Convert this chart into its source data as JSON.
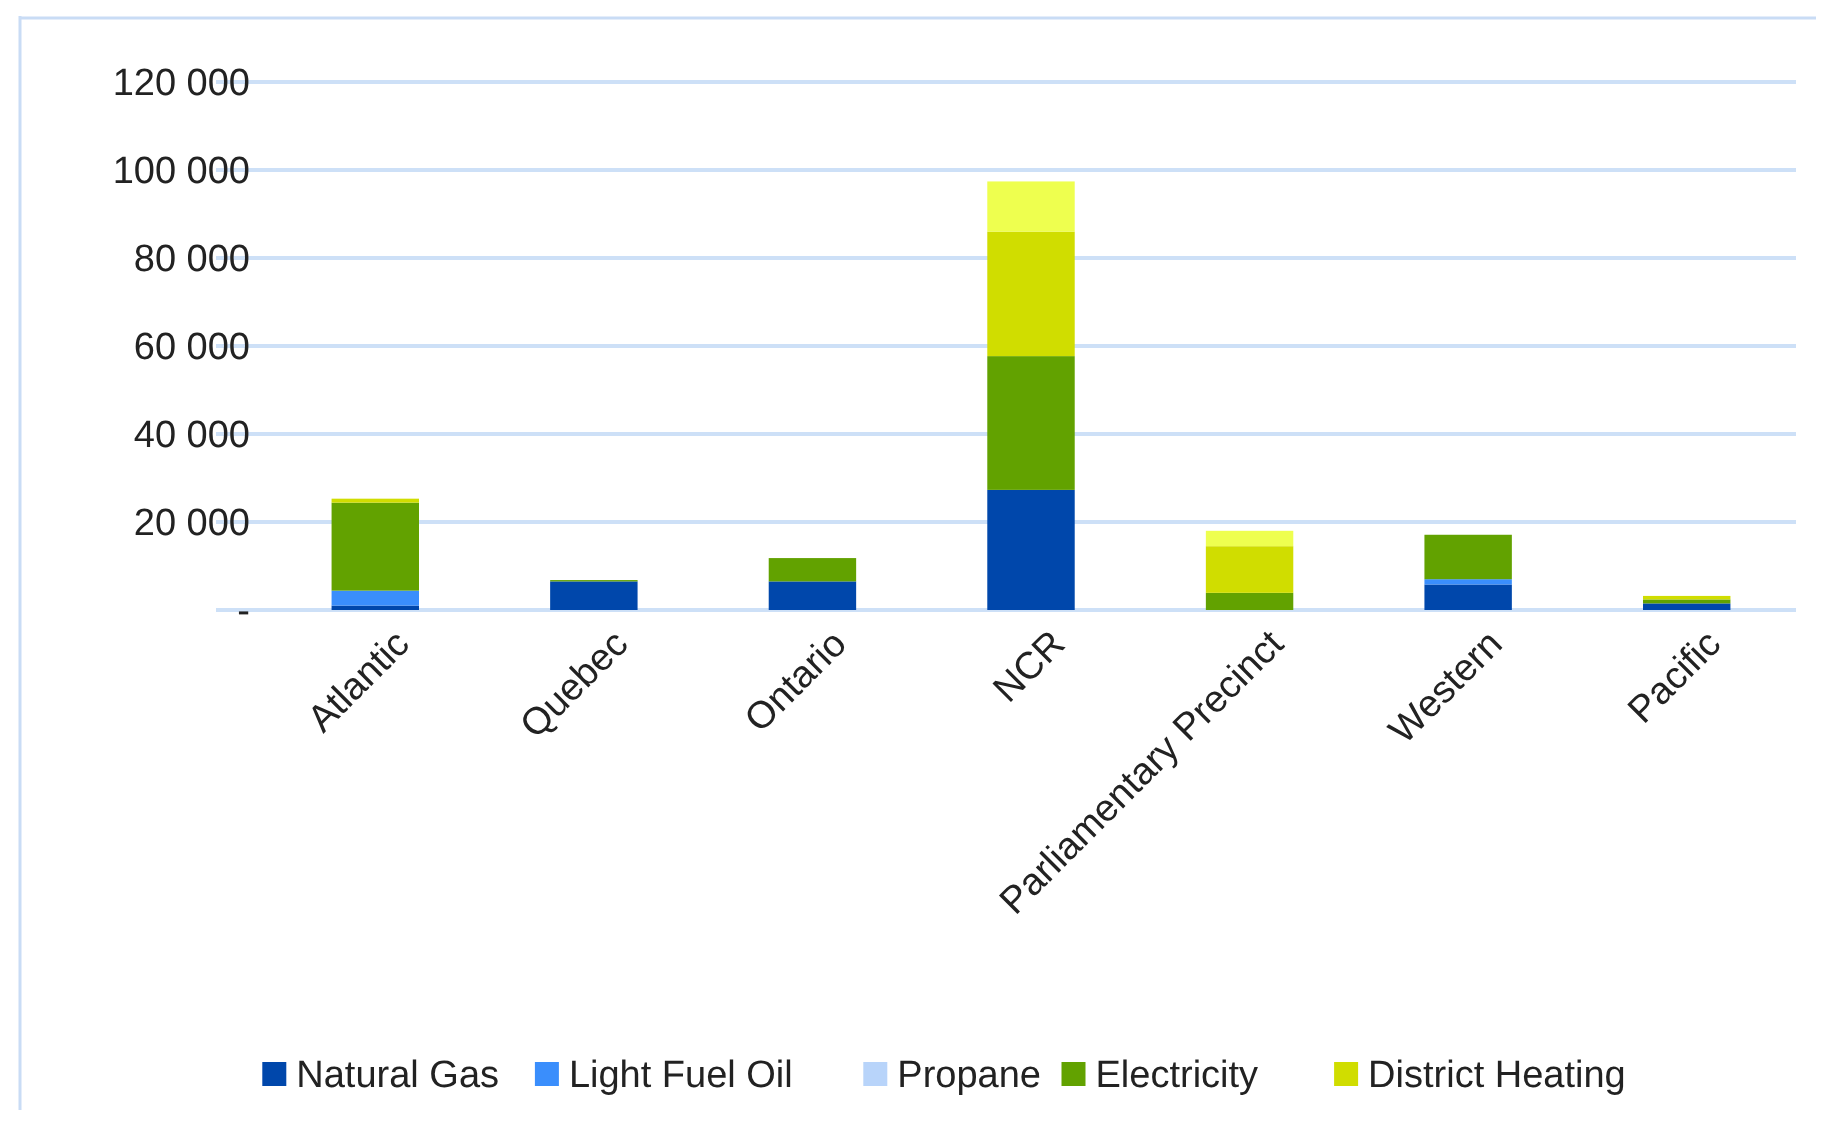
{
  "chart_data": {
    "type": "bar",
    "stacked": true,
    "categories": [
      "Atlantic",
      "Quebec",
      "Ontario",
      "NCR",
      "Parliamentary Precinct",
      "Western",
      "Pacific"
    ],
    "series": [
      {
        "name": "Natural Gas",
        "color": "#0047ab",
        "values": [
          1000,
          6500,
          6500,
          27300,
          0,
          5800,
          1500
        ]
      },
      {
        "name": "Light Fuel Oil",
        "color": "#3a8efc",
        "values": [
          3400,
          0,
          0,
          0,
          0,
          1200,
          0
        ]
      },
      {
        "name": "Propane",
        "color": "#b8d4fa",
        "values": [
          0,
          0,
          0,
          0,
          0,
          0,
          0
        ]
      },
      {
        "name": "Electricity",
        "color": "#62a200",
        "values": [
          20000,
          300,
          5300,
          30400,
          3900,
          10100,
          900
        ]
      },
      {
        "name": "District Heating",
        "color": "#d0dd00",
        "values": [
          900,
          0,
          0,
          28300,
          10600,
          0,
          800
        ]
      },
      {
        "color": "#eeff4f",
        "values": [
          0,
          0,
          0,
          11400,
          3500,
          0,
          0
        ]
      }
    ],
    "ylim": [
      0,
      120000
    ],
    "yticks": [
      {
        "value": 0,
        "label": "-"
      },
      {
        "value": 20000,
        "label": "20 000"
      },
      {
        "value": 40000,
        "label": "40 000"
      },
      {
        "value": 60000,
        "label": "60 000"
      },
      {
        "value": 80000,
        "label": "80 000"
      },
      {
        "value": 100000,
        "label": "100 000"
      },
      {
        "value": 120000,
        "label": "120 000"
      }
    ],
    "grid": "y",
    "legend": "bottom"
  }
}
